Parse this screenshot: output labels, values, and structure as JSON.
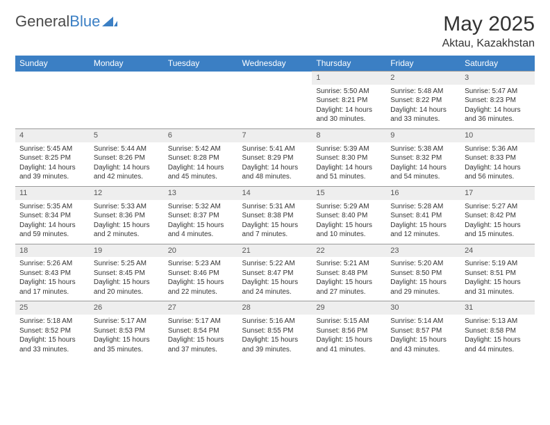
{
  "logo": {
    "text1": "General",
    "text2": "Blue"
  },
  "title": "May 2025",
  "location": "Aktau, Kazakhstan",
  "day_headers": [
    "Sunday",
    "Monday",
    "Tuesday",
    "Wednesday",
    "Thursday",
    "Friday",
    "Saturday"
  ],
  "colors": {
    "header_bg": "#3b7fc4",
    "header_fg": "#ffffff",
    "daynum_bg": "#eeeeee",
    "border": "#999999",
    "text": "#333333"
  },
  "typography": {
    "title_fontsize": 30,
    "location_fontsize": 16,
    "header_fontsize": 12,
    "daynum_fontsize": 11,
    "body_fontsize": 10
  },
  "weeks": [
    [
      null,
      null,
      null,
      null,
      {
        "n": "1",
        "sr": "Sunrise: 5:50 AM",
        "ss": "Sunset: 8:21 PM",
        "d1": "Daylight: 14 hours",
        "d2": "and 30 minutes."
      },
      {
        "n": "2",
        "sr": "Sunrise: 5:48 AM",
        "ss": "Sunset: 8:22 PM",
        "d1": "Daylight: 14 hours",
        "d2": "and 33 minutes."
      },
      {
        "n": "3",
        "sr": "Sunrise: 5:47 AM",
        "ss": "Sunset: 8:23 PM",
        "d1": "Daylight: 14 hours",
        "d2": "and 36 minutes."
      }
    ],
    [
      {
        "n": "4",
        "sr": "Sunrise: 5:45 AM",
        "ss": "Sunset: 8:25 PM",
        "d1": "Daylight: 14 hours",
        "d2": "and 39 minutes."
      },
      {
        "n": "5",
        "sr": "Sunrise: 5:44 AM",
        "ss": "Sunset: 8:26 PM",
        "d1": "Daylight: 14 hours",
        "d2": "and 42 minutes."
      },
      {
        "n": "6",
        "sr": "Sunrise: 5:42 AM",
        "ss": "Sunset: 8:28 PM",
        "d1": "Daylight: 14 hours",
        "d2": "and 45 minutes."
      },
      {
        "n": "7",
        "sr": "Sunrise: 5:41 AM",
        "ss": "Sunset: 8:29 PM",
        "d1": "Daylight: 14 hours",
        "d2": "and 48 minutes."
      },
      {
        "n": "8",
        "sr": "Sunrise: 5:39 AM",
        "ss": "Sunset: 8:30 PM",
        "d1": "Daylight: 14 hours",
        "d2": "and 51 minutes."
      },
      {
        "n": "9",
        "sr": "Sunrise: 5:38 AM",
        "ss": "Sunset: 8:32 PM",
        "d1": "Daylight: 14 hours",
        "d2": "and 54 minutes."
      },
      {
        "n": "10",
        "sr": "Sunrise: 5:36 AM",
        "ss": "Sunset: 8:33 PM",
        "d1": "Daylight: 14 hours",
        "d2": "and 56 minutes."
      }
    ],
    [
      {
        "n": "11",
        "sr": "Sunrise: 5:35 AM",
        "ss": "Sunset: 8:34 PM",
        "d1": "Daylight: 14 hours",
        "d2": "and 59 minutes."
      },
      {
        "n": "12",
        "sr": "Sunrise: 5:33 AM",
        "ss": "Sunset: 8:36 PM",
        "d1": "Daylight: 15 hours",
        "d2": "and 2 minutes."
      },
      {
        "n": "13",
        "sr": "Sunrise: 5:32 AM",
        "ss": "Sunset: 8:37 PM",
        "d1": "Daylight: 15 hours",
        "d2": "and 4 minutes."
      },
      {
        "n": "14",
        "sr": "Sunrise: 5:31 AM",
        "ss": "Sunset: 8:38 PM",
        "d1": "Daylight: 15 hours",
        "d2": "and 7 minutes."
      },
      {
        "n": "15",
        "sr": "Sunrise: 5:29 AM",
        "ss": "Sunset: 8:40 PM",
        "d1": "Daylight: 15 hours",
        "d2": "and 10 minutes."
      },
      {
        "n": "16",
        "sr": "Sunrise: 5:28 AM",
        "ss": "Sunset: 8:41 PM",
        "d1": "Daylight: 15 hours",
        "d2": "and 12 minutes."
      },
      {
        "n": "17",
        "sr": "Sunrise: 5:27 AM",
        "ss": "Sunset: 8:42 PM",
        "d1": "Daylight: 15 hours",
        "d2": "and 15 minutes."
      }
    ],
    [
      {
        "n": "18",
        "sr": "Sunrise: 5:26 AM",
        "ss": "Sunset: 8:43 PM",
        "d1": "Daylight: 15 hours",
        "d2": "and 17 minutes."
      },
      {
        "n": "19",
        "sr": "Sunrise: 5:25 AM",
        "ss": "Sunset: 8:45 PM",
        "d1": "Daylight: 15 hours",
        "d2": "and 20 minutes."
      },
      {
        "n": "20",
        "sr": "Sunrise: 5:23 AM",
        "ss": "Sunset: 8:46 PM",
        "d1": "Daylight: 15 hours",
        "d2": "and 22 minutes."
      },
      {
        "n": "21",
        "sr": "Sunrise: 5:22 AM",
        "ss": "Sunset: 8:47 PM",
        "d1": "Daylight: 15 hours",
        "d2": "and 24 minutes."
      },
      {
        "n": "22",
        "sr": "Sunrise: 5:21 AM",
        "ss": "Sunset: 8:48 PM",
        "d1": "Daylight: 15 hours",
        "d2": "and 27 minutes."
      },
      {
        "n": "23",
        "sr": "Sunrise: 5:20 AM",
        "ss": "Sunset: 8:50 PM",
        "d1": "Daylight: 15 hours",
        "d2": "and 29 minutes."
      },
      {
        "n": "24",
        "sr": "Sunrise: 5:19 AM",
        "ss": "Sunset: 8:51 PM",
        "d1": "Daylight: 15 hours",
        "d2": "and 31 minutes."
      }
    ],
    [
      {
        "n": "25",
        "sr": "Sunrise: 5:18 AM",
        "ss": "Sunset: 8:52 PM",
        "d1": "Daylight: 15 hours",
        "d2": "and 33 minutes."
      },
      {
        "n": "26",
        "sr": "Sunrise: 5:17 AM",
        "ss": "Sunset: 8:53 PM",
        "d1": "Daylight: 15 hours",
        "d2": "and 35 minutes."
      },
      {
        "n": "27",
        "sr": "Sunrise: 5:17 AM",
        "ss": "Sunset: 8:54 PM",
        "d1": "Daylight: 15 hours",
        "d2": "and 37 minutes."
      },
      {
        "n": "28",
        "sr": "Sunrise: 5:16 AM",
        "ss": "Sunset: 8:55 PM",
        "d1": "Daylight: 15 hours",
        "d2": "and 39 minutes."
      },
      {
        "n": "29",
        "sr": "Sunrise: 5:15 AM",
        "ss": "Sunset: 8:56 PM",
        "d1": "Daylight: 15 hours",
        "d2": "and 41 minutes."
      },
      {
        "n": "30",
        "sr": "Sunrise: 5:14 AM",
        "ss": "Sunset: 8:57 PM",
        "d1": "Daylight: 15 hours",
        "d2": "and 43 minutes."
      },
      {
        "n": "31",
        "sr": "Sunrise: 5:13 AM",
        "ss": "Sunset: 8:58 PM",
        "d1": "Daylight: 15 hours",
        "d2": "and 44 minutes."
      }
    ]
  ]
}
